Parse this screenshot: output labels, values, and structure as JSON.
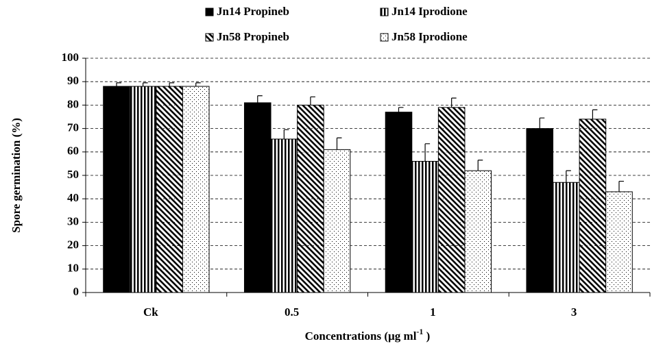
{
  "chart_data": {
    "type": "bar",
    "x_label": "Concentrations (µg ml",
    "x_label_superscript": "-1",
    "x_label_end": " )",
    "y_label": "Spore germination (%)",
    "categories": [
      "Ck",
      "0.5",
      "1",
      "3"
    ],
    "series": [
      {
        "name": "Jn14 Propineb",
        "color": "#000000",
        "pattern": "solid",
        "values": [
          88,
          81,
          77,
          70
        ],
        "errors": [
          1.5,
          3,
          2,
          4.5
        ]
      },
      {
        "name": "Jn14 Iprodione",
        "color": "#000000",
        "pattern": "vertical",
        "values": [
          88,
          65.5,
          56,
          47
        ],
        "errors": [
          1.5,
          4,
          7.5,
          5
        ]
      },
      {
        "name": "Jn58 Propineb",
        "color": "#000000",
        "pattern": "diagonal",
        "values": [
          88,
          80,
          79,
          74
        ],
        "errors": [
          1.5,
          3.5,
          4,
          4
        ]
      },
      {
        "name": "Jn58 Iprodione",
        "color": "#000000",
        "pattern": "dots",
        "values": [
          88,
          61,
          52,
          43
        ],
        "errors": [
          1.5,
          5,
          4.5,
          4.5
        ]
      }
    ],
    "ylim": [
      0,
      100
    ],
    "yticks": [
      0,
      10,
      20,
      30,
      40,
      50,
      60,
      70,
      80,
      90,
      100
    ],
    "grid": true
  }
}
